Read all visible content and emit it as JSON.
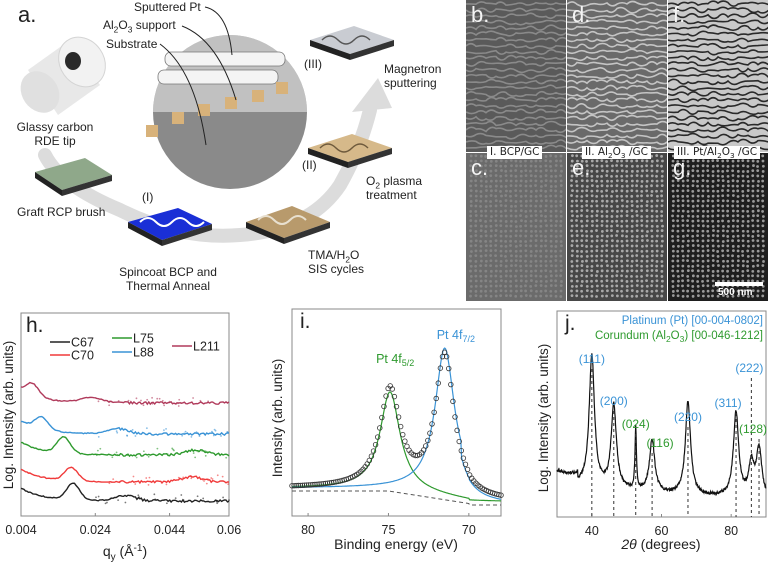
{
  "panel_a": {
    "letter": "a.",
    "callouts": {
      "sputtered_pt": "Sputtered Pt",
      "al2o3_support_pre": "Al",
      "al2o3_support_sub1": "2",
      "al2o3_support_mid": "O",
      "al2o3_support_sub2": "3",
      "al2o3_support_post": " support",
      "substrate": "Substrate"
    },
    "steps": {
      "rde_line1": "Glassy carbon",
      "rde_line2": "RDE tip",
      "graft": "Graft RCP brush",
      "spincoat_line1": "Spincoat BCP and",
      "spincoat_line2": "Thermal Anneal",
      "spincoat_tag": "(I)",
      "sis_line1_pre": "TMA/H",
      "sis_line1_sub": "2",
      "sis_line1_post": "O",
      "sis_line2": "SIS cycles",
      "plasma_line1_pre": "O",
      "plasma_line1_sub": "2",
      "plasma_line1_post": " plasma",
      "plasma_line2": "treatment",
      "plasma_tag": "(II)",
      "sputter_line1": "Magnetron",
      "sputter_line2": "sputtering",
      "sputter_tag": "(III)"
    },
    "colors": {
      "bcp_blue": "#1a2fd6",
      "sis_tan": "#b89a6c",
      "plasma_tan": "#d6b98a",
      "pt_silver": "#c9ccd2",
      "brush_green": "#8fa88a",
      "arrow_grey": "#d9d9d9"
    }
  },
  "sem": {
    "tiles": [
      {
        "letter": "b.",
        "tone": "#5a5a5a",
        "line": "#8a8a8a",
        "kind": "stripes"
      },
      {
        "letter": "d.",
        "tone": "#6a6a6a",
        "line": "#c4c4c4",
        "kind": "stripes"
      },
      {
        "letter": "f.",
        "tone": "#c9c9c9",
        "line": "#2a2a2a",
        "kind": "stripes"
      },
      {
        "letter": "c.",
        "tone": "#6b6b6b",
        "line": "#858585",
        "kind": "dots"
      },
      {
        "letter": "e.",
        "tone": "#474747",
        "line": "#a9a9a9",
        "kind": "dots"
      },
      {
        "letter": "g.",
        "tone": "#1e1e1e",
        "line": "#9a9a9a",
        "kind": "dots"
      }
    ],
    "captions": {
      "c1": "I. BCP/GC",
      "c2_pre": "II. Al",
      "c2_s1": "2",
      "c2_mid": "O",
      "c2_s2": "3",
      "c2_post": " /GC",
      "c3_pre": "III. Pt/Al",
      "c3_s1": "2",
      "c3_mid": "O",
      "c3_s2": "3",
      "c3_post": " /GC"
    },
    "scale_bar": "500 nm"
  },
  "chart_data": [
    {
      "panel": "h.",
      "type": "line",
      "title": "",
      "xlabel": "q_y (Å^-1)",
      "xlabel_main": "q",
      "xlabel_sub": "y",
      "xlabel_unit": " (Å",
      "xlabel_sup": "-1",
      "xlabel_close": ")",
      "ylabel": "Log. Intensity (arb. units)",
      "xlim": [
        0.004,
        0.06
      ],
      "xticks": [
        0.004,
        0.024,
        0.044,
        0.06
      ],
      "xtick_labels": [
        "0.004",
        "0.024",
        "0.044",
        "0.06"
      ],
      "legend": [
        "C67",
        "C70",
        "L75",
        "L88",
        "L211"
      ],
      "legend_placement": "top",
      "series": [
        {
          "name": "L211",
          "color": "#b03a5b",
          "offset": 4,
          "peak_q": 0.007,
          "second_peak_q": 0.023,
          "peak_h": 0.55
        },
        {
          "name": "L88",
          "color": "#3a93d6",
          "offset": 3,
          "peak_q": 0.0095,
          "second_peak_q": 0.03,
          "peak_h": 0.55
        },
        {
          "name": "L75",
          "color": "#2e9a2e",
          "offset": 2,
          "peak_q": 0.0155,
          "second_peak_q": 0.051,
          "peak_h": 0.75
        },
        {
          "name": "C70",
          "color": "#f03a3a",
          "offset": 1,
          "peak_q": 0.0175,
          "second_peak_q": 0.05,
          "peak_h": 0.6
        },
        {
          "name": "C67",
          "color": "#222222",
          "offset": 0,
          "peak_q": 0.018,
          "second_peak_q": 0.032,
          "peak_h": 0.75
        }
      ]
    },
    {
      "panel": "i.",
      "type": "line",
      "xlabel": "Binding energy (eV)",
      "ylabel": "Intensity (arb. units)",
      "xlim": [
        81,
        68
      ],
      "xticks": [
        80,
        75,
        70
      ],
      "xtick_labels": [
        "80",
        "75",
        "70"
      ],
      "annotations": [
        {
          "text_main": "Pt 4f",
          "text_sub": "5/2",
          "color": "#2e9a2e",
          "x": 74.9
        },
        {
          "text_main": "Pt 4f",
          "text_sub": "7/2",
          "color": "#3a93d6",
          "x": 71.5
        }
      ],
      "peaks": [
        {
          "name": "Pt 4f5/2",
          "center_eV": 74.9,
          "relative_height": 0.8,
          "color": "#2e9a2e"
        },
        {
          "name": "Pt 4f7/2",
          "center_eV": 71.5,
          "relative_height": 1.0,
          "color": "#3a93d6"
        }
      ],
      "background": "dashed shirley"
    },
    {
      "panel": "j.",
      "type": "line",
      "xlabel": "2θ (degrees)",
      "xlabel_theta": "2θ",
      "xlabel_rest": " (degrees)",
      "ylabel": "Log. Intensity (arb. units)",
      "xlim": [
        30,
        90
      ],
      "xticks": [
        40,
        60,
        80
      ],
      "xtick_labels": [
        "40",
        "60",
        "80"
      ],
      "legend": [
        {
          "text": "Platinum (Pt) [00-004-0802]",
          "color": "#3a93d6"
        },
        {
          "text_pre": "Corundum (Al",
          "s1": "2",
          "mid": "O",
          "s2": "3",
          "text_post": ") [00-046-1212]",
          "color": "#2e9a2e"
        }
      ],
      "legend_placement": "top-right",
      "reflections": [
        {
          "hkl": "(111)",
          "two_theta": 40.0,
          "phase": "Pt",
          "height": 0.82
        },
        {
          "hkl": "(200)",
          "two_theta": 46.3,
          "phase": "Pt",
          "height": 0.52
        },
        {
          "hkl": "(024)",
          "two_theta": 52.6,
          "phase": "Al2O3",
          "height": 0.38
        },
        {
          "hkl": "(116)",
          "two_theta": 57.3,
          "phase": "Al2O3",
          "height": 0.33
        },
        {
          "hkl": "(220)",
          "two_theta": 67.6,
          "phase": "Pt",
          "height": 0.58
        },
        {
          "hkl": "(311)",
          "two_theta": 81.4,
          "phase": "Pt",
          "height": 0.53
        },
        {
          "hkl": "(222)",
          "two_theta": 85.8,
          "phase": "Pt",
          "height": 0.2
        },
        {
          "hkl": "(128)",
          "two_theta": 88.0,
          "phase": "Al2O3",
          "height": 0.3
        }
      ],
      "colors": {
        "Pt": "#3a93d6",
        "Al2O3": "#2e9a2e"
      }
    }
  ]
}
